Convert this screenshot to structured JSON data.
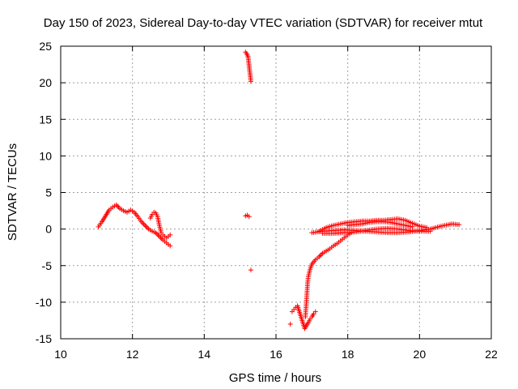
{
  "chart_data": {
    "type": "scatter",
    "title": "Day 150 of 2023, Sidereal Day-to-day VTEC variation (SDTVAR) for receiver mtut",
    "xlabel": "GPS time / hours",
    "ylabel": "SDTVAR / TECUs",
    "xlim": [
      10,
      22
    ],
    "ylim": [
      -15,
      25
    ],
    "xticks": [
      10,
      12,
      14,
      16,
      18,
      20,
      22
    ],
    "yticks": [
      -15,
      -10,
      -5,
      0,
      5,
      10,
      15,
      20,
      25
    ],
    "grid": true,
    "marker": "+",
    "color": "#ff0000",
    "series": [
      {
        "name": "SDTVAR",
        "segments": [
          [
            [
              11.05,
              0.3
            ],
            [
              11.15,
              1.0
            ],
            [
              11.25,
              1.8
            ],
            [
              11.35,
              2.6
            ],
            [
              11.45,
              3.0
            ],
            [
              11.55,
              3.3
            ],
            [
              11.65,
              2.8
            ],
            [
              11.75,
              2.5
            ],
            [
              11.85,
              2.3
            ],
            [
              11.95,
              2.6
            ],
            [
              12.05,
              2.3
            ],
            [
              12.15,
              1.7
            ],
            [
              12.25,
              1.0
            ],
            [
              12.35,
              0.5
            ],
            [
              12.45,
              0.0
            ],
            [
              12.55,
              -0.3
            ],
            [
              12.65,
              -0.5
            ],
            [
              12.75,
              -1.0
            ],
            [
              12.85,
              -1.5
            ],
            [
              12.95,
              -1.9
            ],
            [
              13.05,
              -2.3
            ]
          ],
          [
            [
              12.5,
              1.5
            ],
            [
              12.55,
              2.0
            ],
            [
              12.6,
              2.3
            ],
            [
              12.65,
              2.2
            ],
            [
              12.7,
              1.7
            ],
            [
              12.75,
              0.5
            ],
            [
              12.8,
              -0.5
            ],
            [
              12.85,
              -0.8
            ],
            [
              12.9,
              -1.0
            ],
            [
              12.95,
              -1.2
            ],
            [
              13.0,
              -1.0
            ],
            [
              13.05,
              -0.8
            ]
          ],
          [
            [
              15.15,
              24.2
            ],
            [
              15.18,
              24.0
            ],
            [
              15.2,
              23.8
            ],
            [
              15.22,
              23.6
            ],
            [
              15.3,
              20.2
            ]
          ],
          [
            [
              15.15,
              1.8
            ],
            [
              15.2,
              1.9
            ],
            [
              15.25,
              1.7
            ],
            [
              15.3,
              -5.6
            ],
            [
              16.4,
              -13.0
            ]
          ],
          [
            [
              16.45,
              -11.3
            ],
            [
              16.5,
              -11.0
            ],
            [
              16.55,
              -10.7
            ],
            [
              16.6,
              -10.5
            ],
            [
              16.8,
              -13.6
            ],
            [
              16.85,
              -13.2
            ],
            [
              16.9,
              -12.8
            ],
            [
              16.95,
              -12.3
            ],
            [
              17.0,
              -12.0
            ],
            [
              17.05,
              -11.6
            ],
            [
              17.1,
              -11.3
            ]
          ],
          [
            [
              16.82,
              -12.0
            ],
            [
              16.84,
              -10.5
            ],
            [
              16.86,
              -9.0
            ],
            [
              16.88,
              -7.5
            ],
            [
              16.9,
              -6.5
            ],
            [
              16.95,
              -5.5
            ],
            [
              17.0,
              -4.8
            ],
            [
              17.1,
              -4.2
            ],
            [
              17.2,
              -3.8
            ],
            [
              17.3,
              -3.3
            ],
            [
              17.4,
              -3.0
            ],
            [
              17.5,
              -2.7
            ],
            [
              17.6,
              -2.3
            ],
            [
              17.7,
              -2.0
            ],
            [
              17.8,
              -1.6
            ],
            [
              17.9,
              -1.2
            ],
            [
              18.0,
              -0.8
            ],
            [
              18.1,
              -0.5
            ]
          ],
          [
            [
              17.0,
              -0.5
            ],
            [
              17.3,
              -0.3
            ],
            [
              17.6,
              -0.2
            ],
            [
              17.9,
              -0.1
            ],
            [
              18.2,
              -0.2
            ],
            [
              18.5,
              -0.3
            ],
            [
              18.8,
              -0.4
            ],
            [
              19.1,
              -0.5
            ],
            [
              19.4,
              -0.5
            ],
            [
              19.7,
              -0.4
            ],
            [
              20.0,
              -0.2
            ],
            [
              20.3,
              0.0
            ],
            [
              20.6,
              0.4
            ],
            [
              20.9,
              0.7
            ],
            [
              21.1,
              0.6
            ]
          ],
          [
            [
              17.2,
              -0.3
            ],
            [
              17.4,
              0.2
            ],
            [
              17.6,
              0.5
            ],
            [
              17.8,
              0.7
            ],
            [
              18.0,
              0.9
            ],
            [
              18.2,
              1.0
            ],
            [
              18.4,
              1.1
            ],
            [
              18.6,
              1.1
            ],
            [
              18.8,
              1.2
            ],
            [
              19.0,
              1.2
            ],
            [
              19.2,
              1.3
            ],
            [
              19.4,
              1.4
            ],
            [
              19.6,
              1.2
            ],
            [
              19.8,
              0.8
            ],
            [
              20.0,
              0.4
            ],
            [
              20.2,
              0.2
            ]
          ],
          [
            [
              17.3,
              -0.6
            ],
            [
              17.6,
              -0.6
            ],
            [
              17.9,
              -0.5
            ],
            [
              18.2,
              -0.4
            ],
            [
              18.5,
              -0.2
            ],
            [
              18.8,
              0.0
            ],
            [
              19.1,
              0.1
            ],
            [
              19.4,
              0.0
            ],
            [
              19.7,
              -0.2
            ],
            [
              20.0,
              -0.3
            ],
            [
              20.3,
              -0.3
            ]
          ],
          [
            [
              18.0,
              0.5
            ],
            [
              18.2,
              0.6
            ],
            [
              18.4,
              0.7
            ],
            [
              18.6,
              0.9
            ],
            [
              18.8,
              1.0
            ],
            [
              19.0,
              1.0
            ],
            [
              19.2,
              0.9
            ],
            [
              19.4,
              0.7
            ],
            [
              19.6,
              0.5
            ],
            [
              19.8,
              0.3
            ]
          ]
        ]
      }
    ]
  }
}
